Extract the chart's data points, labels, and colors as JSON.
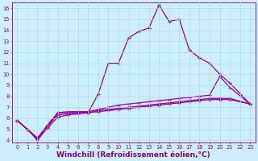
{
  "title": "",
  "xlabel": "Windchill (Refroidissement éolien,°C)",
  "ylabel": "",
  "bg_color": "#cceeff",
  "line_color": "#990099",
  "grid_color": "#aadddd",
  "xlim": [
    -0.5,
    23.5
  ],
  "ylim": [
    3.8,
    16.5
  ],
  "xticks": [
    0,
    1,
    2,
    3,
    4,
    5,
    6,
    7,
    8,
    9,
    10,
    11,
    12,
    13,
    14,
    15,
    16,
    17,
    18,
    19,
    20,
    21,
    22,
    23
  ],
  "yticks": [
    4,
    5,
    6,
    7,
    8,
    9,
    10,
    11,
    12,
    13,
    14,
    15,
    16
  ],
  "series": [
    {
      "x": [
        0,
        1,
        2,
        3,
        4,
        5,
        6,
        7,
        8,
        9,
        10,
        11,
        12,
        13,
        14,
        15,
        16,
        17,
        18,
        19,
        20,
        21,
        23
      ],
      "y": [
        5.8,
        5.0,
        4.0,
        5.2,
        6.5,
        6.6,
        6.6,
        6.5,
        8.2,
        11.0,
        11.0,
        13.3,
        13.9,
        14.2,
        16.3,
        14.8,
        15.0,
        12.2,
        11.5,
        11.0,
        10.0,
        9.2,
        7.3
      ]
    },
    {
      "x": [
        0,
        1,
        2,
        3,
        4,
        5,
        6,
        7,
        8,
        9,
        10,
        11,
        12,
        13,
        14,
        15,
        16,
        17,
        18,
        19,
        20,
        21,
        23
      ],
      "y": [
        5.8,
        5.0,
        4.2,
        5.4,
        6.5,
        6.5,
        6.6,
        6.6,
        6.8,
        7.0,
        7.2,
        7.3,
        7.4,
        7.5,
        7.6,
        7.7,
        7.8,
        7.9,
        8.0,
        8.1,
        9.8,
        8.8,
        7.3
      ]
    },
    {
      "x": [
        0,
        1,
        2,
        3,
        4,
        5,
        6,
        7,
        8,
        9,
        10,
        11,
        12,
        13,
        14,
        15,
        16,
        17,
        18,
        19,
        20,
        21,
        23
      ],
      "y": [
        5.8,
        5.0,
        4.2,
        5.3,
        6.3,
        6.4,
        6.5,
        6.5,
        6.7,
        6.8,
        6.9,
        7.0,
        7.1,
        7.2,
        7.3,
        7.4,
        7.5,
        7.6,
        7.7,
        7.8,
        7.8,
        7.8,
        7.3
      ]
    },
    {
      "x": [
        0,
        1,
        2,
        3,
        4,
        5,
        6,
        7,
        8,
        9,
        10,
        11,
        12,
        13,
        14,
        15,
        16,
        17,
        18,
        19,
        20,
        21,
        23
      ],
      "y": [
        5.8,
        5.0,
        4.1,
        5.1,
        6.1,
        6.3,
        6.4,
        6.5,
        6.6,
        6.7,
        6.8,
        6.9,
        7.0,
        7.1,
        7.2,
        7.3,
        7.4,
        7.5,
        7.6,
        7.7,
        7.7,
        7.7,
        7.3
      ]
    }
  ],
  "marker": "+",
  "markersize": 3,
  "linewidth": 0.9,
  "tick_fontsize": 4.8,
  "xlabel_fontsize": 6.5,
  "tick_color": "#880088",
  "label_color": "#880088"
}
